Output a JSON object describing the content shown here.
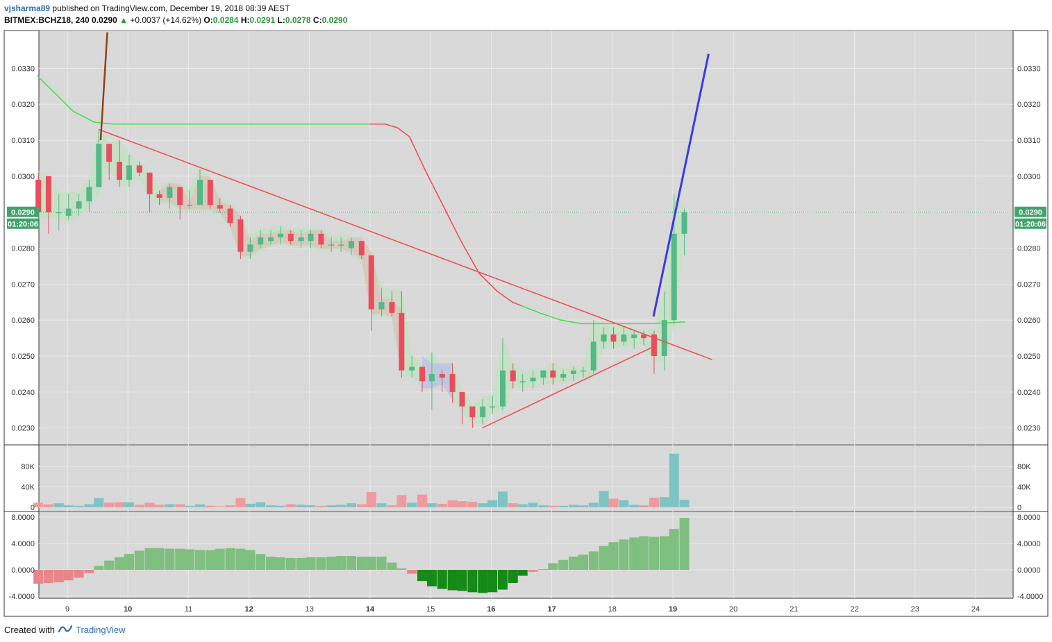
{
  "header": {
    "author": "vjsharma89",
    "published_text": "published on TradingView.com, December 19, 2018 08:39 AEST",
    "symbol": "BITMEX:BCHZ18, 240",
    "last": "0.0290",
    "change": "+0.0037 (+14.62%)",
    "o_label": "O:",
    "o": "0.0284",
    "h_label": "H:",
    "h": "0.0291",
    "l_label": "L:",
    "l": "0.0278",
    "c_label": "C:",
    "c": "0.0290"
  },
  "footer": {
    "created_with": "Created with",
    "brand": "TradingView"
  },
  "colors": {
    "up": "#53b987",
    "down": "#eb4d5c",
    "panel_bg": "#d9d9d9",
    "grid": "#ebebeb",
    "blue_line": "#3a3ae6",
    "green_line": "#4ddc4d",
    "red_line": "#f05050",
    "histo_up": "#7fbf7f",
    "histo_down": "#e8868a",
    "histo_strong": "#168a16"
  },
  "price_badge": {
    "price": "0.0290",
    "countdown": "01:20:06"
  },
  "chart_data": {
    "type": "candlestick",
    "x_tick_labels": [
      "9",
      "10",
      "11",
      "12",
      "13",
      "14",
      "15",
      "16",
      "17",
      "18",
      "19",
      "20",
      "21",
      "22",
      "23",
      "24"
    ],
    "price_axis": {
      "ticks": [
        "0.0330",
        "0.0320",
        "0.0310",
        "0.0300",
        "0.0290",
        "0.0280",
        "0.0270",
        "0.0260",
        "0.0250",
        "0.0240",
        "0.0230"
      ],
      "range": [
        0.02255,
        0.03405
      ]
    },
    "volume_axis": {
      "ticks": [
        "80K",
        "40K",
        "0"
      ],
      "range": [
        0,
        110000
      ]
    },
    "oscillator_axis": {
      "ticks": [
        "8.0000",
        "4.0000",
        "0.0000",
        "-4.0000"
      ],
      "range": [
        -4.0,
        8.0
      ]
    },
    "candles": [
      {
        "d": 8.52,
        "o": 0.0299,
        "h": 0.0301,
        "l": 0.0288,
        "c": 0.029
      },
      {
        "d": 8.69,
        "o": 0.03,
        "h": 0.03,
        "l": 0.0284,
        "c": 0.029
      },
      {
        "d": 8.86,
        "o": 0.029,
        "h": 0.0295,
        "l": 0.0285,
        "c": 0.029
      },
      {
        "d": 9.02,
        "o": 0.0289,
        "h": 0.0295,
        "l": 0.0288,
        "c": 0.0291
      },
      {
        "d": 9.19,
        "o": 0.0291,
        "h": 0.0295,
        "l": 0.0289,
        "c": 0.0293
      },
      {
        "d": 9.36,
        "o": 0.0293,
        "h": 0.0299,
        "l": 0.029,
        "c": 0.0297
      },
      {
        "d": 9.52,
        "o": 0.0297,
        "h": 0.0313,
        "l": 0.0297,
        "c": 0.0309
      },
      {
        "d": 9.69,
        "o": 0.0309,
        "h": 0.0309,
        "l": 0.0299,
        "c": 0.0304
      },
      {
        "d": 9.86,
        "o": 0.0304,
        "h": 0.031,
        "l": 0.0297,
        "c": 0.0299
      },
      {
        "d": 10.02,
        "o": 0.0299,
        "h": 0.0306,
        "l": 0.0297,
        "c": 0.0303
      },
      {
        "d": 10.19,
        "o": 0.0303,
        "h": 0.0304,
        "l": 0.03,
        "c": 0.0301
      },
      {
        "d": 10.36,
        "o": 0.0301,
        "h": 0.0301,
        "l": 0.029,
        "c": 0.0295
      },
      {
        "d": 10.52,
        "o": 0.0295,
        "h": 0.0296,
        "l": 0.0292,
        "c": 0.0294
      },
      {
        "d": 10.69,
        "o": 0.0294,
        "h": 0.0298,
        "l": 0.0291,
        "c": 0.0297
      },
      {
        "d": 10.86,
        "o": 0.0297,
        "h": 0.0297,
        "l": 0.0288,
        "c": 0.0292
      },
      {
        "d": 11.02,
        "o": 0.0292,
        "h": 0.0296,
        "l": 0.0291,
        "c": 0.0292
      },
      {
        "d": 11.19,
        "o": 0.0292,
        "h": 0.0302,
        "l": 0.0292,
        "c": 0.0299
      },
      {
        "d": 11.36,
        "o": 0.0299,
        "h": 0.0299,
        "l": 0.0291,
        "c": 0.0292
      },
      {
        "d": 11.52,
        "o": 0.0292,
        "h": 0.0294,
        "l": 0.029,
        "c": 0.0291
      },
      {
        "d": 11.69,
        "o": 0.0291,
        "h": 0.0292,
        "l": 0.0286,
        "c": 0.0287
      },
      {
        "d": 11.86,
        "o": 0.0288,
        "h": 0.0289,
        "l": 0.0277,
        "c": 0.0279
      },
      {
        "d": 12.02,
        "o": 0.0279,
        "h": 0.0283,
        "l": 0.0277,
        "c": 0.0281
      },
      {
        "d": 12.19,
        "o": 0.0281,
        "h": 0.0285,
        "l": 0.028,
        "c": 0.0283
      },
      {
        "d": 12.36,
        "o": 0.0282,
        "h": 0.0285,
        "l": 0.0281,
        "c": 0.0283
      },
      {
        "d": 12.52,
        "o": 0.0283,
        "h": 0.0286,
        "l": 0.0281,
        "c": 0.0284
      },
      {
        "d": 12.69,
        "o": 0.0284,
        "h": 0.0285,
        "l": 0.0281,
        "c": 0.0282
      },
      {
        "d": 12.86,
        "o": 0.0282,
        "h": 0.0285,
        "l": 0.028,
        "c": 0.0283
      },
      {
        "d": 13.02,
        "o": 0.0282,
        "h": 0.0285,
        "l": 0.028,
        "c": 0.0284
      },
      {
        "d": 13.19,
        "o": 0.0284,
        "h": 0.0285,
        "l": 0.028,
        "c": 0.0281
      },
      {
        "d": 13.36,
        "o": 0.0281,
        "h": 0.0283,
        "l": 0.0279,
        "c": 0.0281
      },
      {
        "d": 13.52,
        "o": 0.0281,
        "h": 0.0283,
        "l": 0.0279,
        "c": 0.0281
      },
      {
        "d": 13.69,
        "o": 0.028,
        "h": 0.0283,
        "l": 0.0278,
        "c": 0.0282
      },
      {
        "d": 13.86,
        "o": 0.0282,
        "h": 0.0282,
        "l": 0.0277,
        "c": 0.0278
      },
      {
        "d": 14.02,
        "o": 0.0278,
        "h": 0.0278,
        "l": 0.0257,
        "c": 0.0263
      },
      {
        "d": 14.19,
        "o": 0.0263,
        "h": 0.0269,
        "l": 0.0261,
        "c": 0.0265
      },
      {
        "d": 14.36,
        "o": 0.0265,
        "h": 0.0268,
        "l": 0.0261,
        "c": 0.0262
      },
      {
        "d": 14.52,
        "o": 0.0262,
        "h": 0.0268,
        "l": 0.0244,
        "c": 0.0246
      },
      {
        "d": 14.69,
        "o": 0.0246,
        "h": 0.025,
        "l": 0.0244,
        "c": 0.0247
      },
      {
        "d": 14.86,
        "o": 0.0247,
        "h": 0.0247,
        "l": 0.024,
        "c": 0.0243
      },
      {
        "d": 15.02,
        "o": 0.0243,
        "h": 0.0251,
        "l": 0.0235,
        "c": 0.0245
      },
      {
        "d": 15.19,
        "o": 0.0245,
        "h": 0.0246,
        "l": 0.024,
        "c": 0.0244
      },
      {
        "d": 15.36,
        "o": 0.0245,
        "h": 0.0248,
        "l": 0.0237,
        "c": 0.024
      },
      {
        "d": 15.52,
        "o": 0.024,
        "h": 0.024,
        "l": 0.0231,
        "c": 0.0236
      },
      {
        "d": 15.69,
        "o": 0.0236,
        "h": 0.0236,
        "l": 0.023,
        "c": 0.0233
      },
      {
        "d": 15.86,
        "o": 0.0233,
        "h": 0.0238,
        "l": 0.0231,
        "c": 0.0236
      },
      {
        "d": 16.02,
        "o": 0.0236,
        "h": 0.0239,
        "l": 0.0234,
        "c": 0.0236
      },
      {
        "d": 16.19,
        "o": 0.0236,
        "h": 0.0255,
        "l": 0.0235,
        "c": 0.0246
      },
      {
        "d": 16.36,
        "o": 0.0246,
        "h": 0.0248,
        "l": 0.0241,
        "c": 0.0243
      },
      {
        "d": 16.52,
        "o": 0.0243,
        "h": 0.0245,
        "l": 0.024,
        "c": 0.0243
      },
      {
        "d": 16.69,
        "o": 0.0243,
        "h": 0.0246,
        "l": 0.0241,
        "c": 0.0244
      },
      {
        "d": 16.86,
        "o": 0.0244,
        "h": 0.0246,
        "l": 0.0242,
        "c": 0.0246
      },
      {
        "d": 17.02,
        "o": 0.0246,
        "h": 0.0248,
        "l": 0.0242,
        "c": 0.0244
      },
      {
        "d": 17.19,
        "o": 0.0244,
        "h": 0.0246,
        "l": 0.0243,
        "c": 0.0245
      },
      {
        "d": 17.36,
        "o": 0.0245,
        "h": 0.0247,
        "l": 0.0243,
        "c": 0.0246
      },
      {
        "d": 17.52,
        "o": 0.0246,
        "h": 0.0247,
        "l": 0.0244,
        "c": 0.0246
      },
      {
        "d": 17.69,
        "o": 0.0246,
        "h": 0.026,
        "l": 0.0245,
        "c": 0.0254
      },
      {
        "d": 17.86,
        "o": 0.0254,
        "h": 0.0258,
        "l": 0.0252,
        "c": 0.0256
      },
      {
        "d": 18.02,
        "o": 0.0256,
        "h": 0.0258,
        "l": 0.0252,
        "c": 0.0254
      },
      {
        "d": 18.19,
        "o": 0.0254,
        "h": 0.0258,
        "l": 0.0253,
        "c": 0.0256
      },
      {
        "d": 18.36,
        "o": 0.0255,
        "h": 0.0257,
        "l": 0.0252,
        "c": 0.0256
      },
      {
        "d": 18.52,
        "o": 0.0256,
        "h": 0.0257,
        "l": 0.0253,
        "c": 0.0255
      },
      {
        "d": 18.69,
        "o": 0.0256,
        "h": 0.0257,
        "l": 0.0245,
        "c": 0.025
      },
      {
        "d": 18.86,
        "o": 0.025,
        "h": 0.0268,
        "l": 0.0246,
        "c": 0.026
      },
      {
        "d": 19.02,
        "o": 0.026,
        "h": 0.0295,
        "l": 0.0259,
        "c": 0.0284
      },
      {
        "d": 19.19,
        "o": 0.0284,
        "h": 0.0291,
        "l": 0.0278,
        "c": 0.029
      }
    ],
    "volume": [
      9000,
      6000,
      8000,
      4000,
      3000,
      6000,
      18000,
      9000,
      10000,
      10000,
      5000,
      9000,
      5000,
      6000,
      6000,
      3000,
      6000,
      3000,
      2000,
      4000,
      18000,
      7000,
      10000,
      4000,
      3000,
      6000,
      5000,
      4000,
      3000,
      4000,
      5000,
      8000,
      6000,
      30000,
      8000,
      4000,
      24000,
      9000,
      25000,
      8000,
      7000,
      14000,
      12000,
      11000,
      8000,
      14000,
      31000,
      8000,
      6000,
      9000,
      4000,
      3000,
      3000,
      5000,
      4000,
      9000,
      32000,
      17000,
      14000,
      5000,
      4000,
      19000,
      20000,
      105000,
      15000
    ],
    "oscillator": [
      -2.1,
      -2.0,
      -1.9,
      -1.6,
      -1.2,
      -0.5,
      0.6,
      1.4,
      1.9,
      2.4,
      2.9,
      3.3,
      3.3,
      3.2,
      3.2,
      3.1,
      3.0,
      3.0,
      3.2,
      3.3,
      3.2,
      3.0,
      2.4,
      2.0,
      1.9,
      1.8,
      1.8,
      1.9,
      1.9,
      2.0,
      2.1,
      2.1,
      2.0,
      2.0,
      2.0,
      1.1,
      0.2,
      -0.6,
      -1.7,
      -2.5,
      -2.9,
      -3.1,
      -3.2,
      -3.4,
      -3.5,
      -3.4,
      -3.0,
      -2.0,
      -0.9,
      -0.3,
      0.1,
      1.0,
      1.5,
      2.0,
      2.3,
      2.8,
      3.6,
      4.2,
      4.6,
      4.9,
      5.1,
      5.0,
      5.1,
      6.2,
      7.9
    ],
    "oscillator_strong_range": [
      38,
      48
    ],
    "lines": {
      "blue": [
        [
          18.68,
          0.0261
        ],
        [
          19.59,
          0.0334
        ]
      ],
      "brown": [
        [
          9.55,
          0.031
        ],
        [
          9.66,
          0.034
        ]
      ],
      "resistance": [
        [
          9.52,
          0.0313
        ],
        [
          19.65,
          0.0249
        ]
      ],
      "support": [
        [
          15.85,
          0.023
        ],
        [
          18.73,
          0.0253
        ]
      ],
      "green_ma": [
        [
          8.5,
          0.0328
        ],
        [
          9.1,
          0.0318
        ],
        [
          9.45,
          0.0315
        ],
        [
          9.75,
          0.03145
        ],
        [
          14.0,
          0.03145
        ]
      ],
      "red_ma": [
        [
          14.0,
          0.03145
        ],
        [
          14.25,
          0.03145
        ],
        [
          14.45,
          0.03135
        ],
        [
          14.65,
          0.0311
        ],
        [
          14.9,
          0.0302
        ],
        [
          15.2,
          0.0292
        ],
        [
          15.5,
          0.0282
        ],
        [
          15.8,
          0.0273
        ],
        [
          16.1,
          0.0268
        ],
        [
          16.35,
          0.0265
        ],
        [
          16.5,
          0.0264
        ]
      ],
      "green_ma2": [
        [
          16.5,
          0.0264
        ],
        [
          16.8,
          0.0262
        ],
        [
          17.15,
          0.026
        ],
        [
          17.5,
          0.0259
        ],
        [
          17.8,
          0.0259
        ],
        [
          18.2,
          0.0259
        ],
        [
          18.6,
          0.0259
        ],
        [
          19.2,
          0.02595
        ]
      ]
    }
  }
}
